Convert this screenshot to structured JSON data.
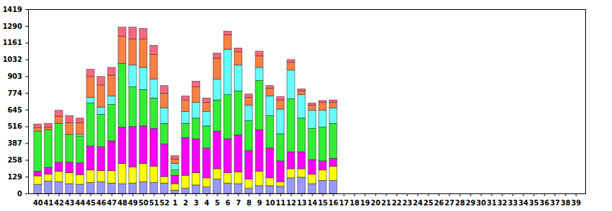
{
  "chart_data": {
    "type": "bar",
    "stacked": true,
    "categories": [
      "40",
      "41",
      "42",
      "43",
      "44",
      "45",
      "46",
      "47",
      "48",
      "49",
      "50",
      "51",
      "52",
      "1",
      "2",
      "3",
      "4",
      "5",
      "6",
      "7",
      "8",
      "9",
      "10",
      "11",
      "12",
      "13",
      "14",
      "15",
      "16",
      "17",
      "18",
      "19",
      "20",
      "21",
      "22",
      "23",
      "24",
      "25",
      "26",
      "27",
      "28",
      "29",
      "30",
      "31",
      "32",
      "33",
      "34",
      "35",
      "36",
      "37",
      "38",
      "39"
    ],
    "series": [
      {
        "color": "#9999ff",
        "values": [
          70,
          95,
          90,
          75,
          70,
          85,
          90,
          80,
          75,
          80,
          90,
          85,
          80,
          25,
          40,
          65,
          50,
          110,
          80,
          75,
          40,
          60,
          60,
          55,
          120,
          125,
          75,
          100,
          100,
          null,
          null,
          null,
          null,
          null,
          null,
          null,
          null,
          null,
          null,
          null,
          null,
          null,
          null,
          null,
          null,
          null,
          null,
          null,
          null,
          null,
          null,
          null
        ]
      },
      {
        "color": "#ffff00",
        "values": [
          65,
          55,
          80,
          85,
          75,
          95,
          85,
          95,
          155,
          125,
          140,
          125,
          50,
          50,
          100,
          95,
          70,
          80,
          80,
          90,
          70,
          110,
          60,
          35,
          70,
          65,
          75,
          80,
          110,
          null,
          null,
          null,
          null,
          null,
          null,
          null,
          null,
          null,
          null,
          null,
          null,
          null,
          null,
          null,
          null,
          null,
          null,
          null,
          null,
          null,
          null,
          null
        ]
      },
      {
        "color": "#ff00ff",
        "values": [
          35,
          50,
          70,
          80,
          90,
          185,
          185,
          230,
          280,
          310,
          290,
          290,
          250,
          65,
          290,
          260,
          230,
          290,
          260,
          285,
          220,
          320,
          230,
          160,
          130,
          130,
          110,
          70,
          60,
          null,
          null,
          null,
          null,
          null,
          null,
          null,
          null,
          null,
          null,
          null,
          null,
          null,
          null,
          null,
          null,
          null,
          null,
          null,
          null,
          null,
          null,
          null
        ]
      },
      {
        "color": "#33ee33",
        "values": [
          310,
          290,
          300,
          215,
          205,
          330,
          250,
          280,
          490,
          305,
          280,
          235,
          160,
          40,
          110,
          160,
          170,
          240,
          340,
          340,
          230,
          380,
          250,
          210,
          410,
          260,
          240,
          260,
          270,
          null,
          null,
          null,
          null,
          null,
          null,
          null,
          null,
          null,
          null,
          null,
          null,
          null,
          null,
          null,
          null,
          null,
          null,
          null,
          null,
          null,
          null,
          null
        ]
      },
      {
        "color": "#66ffff",
        "values": [
          0,
          0,
          0,
          0,
          15,
          45,
          55,
          65,
          0,
          170,
          170,
          145,
          120,
          50,
          90,
          120,
          110,
          160,
          350,
          200,
          120,
          100,
          150,
          190,
          220,
          180,
          140,
          130,
          120,
          null,
          null,
          null,
          null,
          null,
          null,
          null,
          null,
          null,
          null,
          null,
          null,
          null,
          null,
          null,
          null,
          null,
          null,
          null,
          null,
          null,
          null,
          null
        ]
      },
      {
        "color": "#ff8040",
        "values": [
          25,
          20,
          55,
          90,
          90,
          160,
          170,
          160,
          210,
          200,
          220,
          190,
          110,
          35,
          90,
          120,
          70,
          160,
          110,
          100,
          60,
          90,
          60,
          70,
          60,
          30,
          40,
          60,
          40,
          null,
          null,
          null,
          null,
          null,
          null,
          null,
          null,
          null,
          null,
          null,
          null,
          null,
          null,
          null,
          null,
          null,
          null,
          null,
          null,
          null,
          null,
          null
        ]
      },
      {
        "color": "#ff6680",
        "values": [
          30,
          30,
          45,
          55,
          35,
          55,
          65,
          60,
          70,
          90,
          80,
          70,
          60,
          25,
          30,
          45,
          35,
          40,
          30,
          30,
          25,
          35,
          20,
          25,
          20,
          15,
          15,
          15,
          20,
          null,
          null,
          null,
          null,
          null,
          null,
          null,
          null,
          null,
          null,
          null,
          null,
          null,
          null,
          null,
          null,
          null,
          null,
          null,
          null,
          null,
          null,
          null
        ]
      }
    ],
    "ylim": [
      0,
      1419
    ],
    "yticks": [
      0,
      129,
      258,
      387,
      516,
      645,
      774,
      903,
      1032,
      1161,
      1290,
      1419
    ],
    "grid": false
  }
}
